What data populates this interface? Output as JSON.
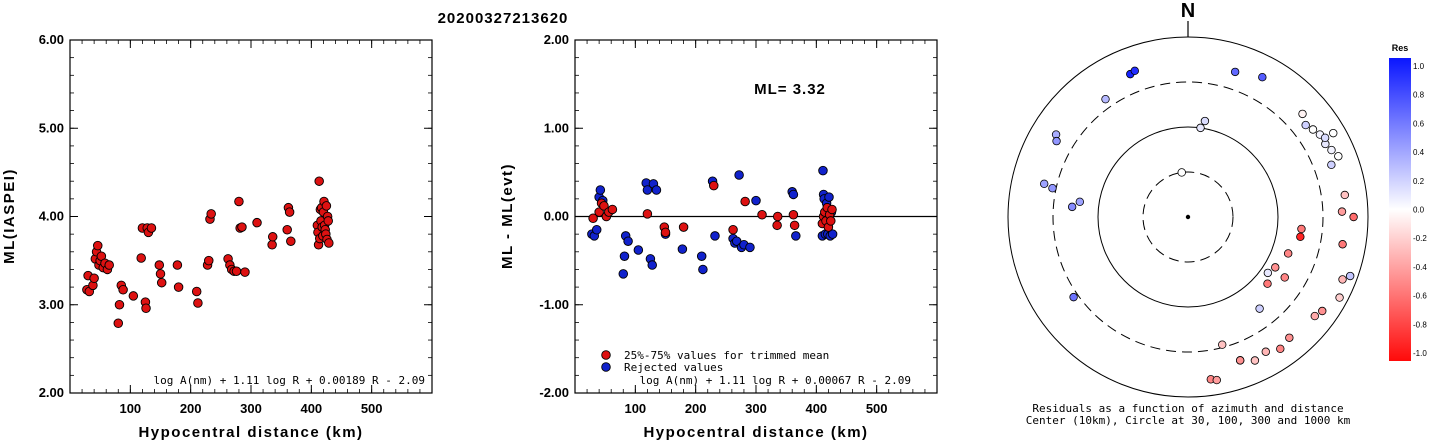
{
  "title": "20200327213620",
  "chart_data": [
    {
      "type": "scatter",
      "name": "ml-vs-distance",
      "xlabel": "Hypocentral distance (km)",
      "ylabel": "ML(IASPEI)",
      "xlim": [
        0,
        600
      ],
      "ylim": [
        2.0,
        6.0
      ],
      "xticks": [
        "100",
        "200",
        "300",
        "400",
        "500"
      ],
      "yticks": [
        "2.00",
        "3.00",
        "4.00",
        "5.00",
        "6.00"
      ],
      "formula": "log A(nm) + 1.11 log R + 0.00189 R - 2.09",
      "marker_color": "#dd1111",
      "points": [
        [
          28,
          3.17
        ],
        [
          30,
          3.33
        ],
        [
          32,
          3.15
        ],
        [
          38,
          3.22
        ],
        [
          40,
          3.3
        ],
        [
          42,
          3.52
        ],
        [
          44,
          3.6
        ],
        [
          46,
          3.67
        ],
        [
          48,
          3.45
        ],
        [
          50,
          3.5
        ],
        [
          52,
          3.55
        ],
        [
          55,
          3.42
        ],
        [
          58,
          3.47
        ],
        [
          62,
          3.4
        ],
        [
          65,
          3.45
        ],
        [
          80,
          2.79
        ],
        [
          82,
          3.0
        ],
        [
          85,
          3.22
        ],
        [
          88,
          3.17
        ],
        [
          105,
          3.1
        ],
        [
          118,
          3.53
        ],
        [
          120,
          3.87
        ],
        [
          125,
          3.03
        ],
        [
          126,
          2.96
        ],
        [
          128,
          3.87
        ],
        [
          130,
          3.82
        ],
        [
          135,
          3.87
        ],
        [
          148,
          3.45
        ],
        [
          150,
          3.35
        ],
        [
          152,
          3.25
        ],
        [
          178,
          3.45
        ],
        [
          180,
          3.2
        ],
        [
          210,
          3.15
        ],
        [
          212,
          3.02
        ],
        [
          228,
          3.45
        ],
        [
          230,
          3.5
        ],
        [
          232,
          3.97
        ],
        [
          234,
          4.03
        ],
        [
          262,
          3.52
        ],
        [
          265,
          3.45
        ],
        [
          268,
          3.4
        ],
        [
          272,
          3.38
        ],
        [
          276,
          3.38
        ],
        [
          280,
          4.17
        ],
        [
          282,
          3.87
        ],
        [
          285,
          3.88
        ],
        [
          290,
          3.37
        ],
        [
          310,
          3.93
        ],
        [
          335,
          3.68
        ],
        [
          336,
          3.77
        ],
        [
          360,
          3.85
        ],
        [
          362,
          4.1
        ],
        [
          364,
          4.05
        ],
        [
          366,
          3.72
        ],
        [
          410,
          3.9
        ],
        [
          411,
          3.82
        ],
        [
          412,
          3.68
        ],
        [
          413,
          4.4
        ],
        [
          414,
          3.75
        ],
        [
          415,
          4.08
        ],
        [
          416,
          3.95
        ],
        [
          417,
          4.1
        ],
        [
          418,
          3.88
        ],
        [
          419,
          3.78
        ],
        [
          420,
          4.05
        ],
        [
          421,
          4.17
        ],
        [
          422,
          3.9
        ],
        [
          423,
          3.85
        ],
        [
          424,
          3.8
        ],
        [
          425,
          4.12
        ],
        [
          426,
          3.74
        ],
        [
          427,
          4.0
        ],
        [
          428,
          3.95
        ],
        [
          429,
          3.7
        ]
      ]
    },
    {
      "type": "scatter",
      "name": "residual-vs-distance",
      "xlabel": "Hypocentral distance (km)",
      "ylabel": "ML - ML(evt)",
      "xlim": [
        0,
        600
      ],
      "ylim": [
        -2.0,
        2.0
      ],
      "xticks": [
        "100",
        "200",
        "300",
        "400",
        "500"
      ],
      "yticks": [
        "-2.00",
        "-1.00",
        "0.00",
        "1.00",
        "2.00"
      ],
      "ml_label": "ML= 3.32",
      "formula": "log A(nm) + 1.11 log R + 0.00067 R - 2.09",
      "legend": [
        {
          "label": "25%-75% values for trimmed mean",
          "color": "#dd1111"
        },
        {
          "label": "Rejected values",
          "color": "#1122cc"
        }
      ],
      "trimmed": [
        [
          30,
          -0.02
        ],
        [
          40,
          0.05
        ],
        [
          44,
          0.15
        ],
        [
          48,
          0.12
        ],
        [
          52,
          0.0
        ],
        [
          56,
          0.05
        ],
        [
          62,
          0.08
        ],
        [
          120,
          0.03
        ],
        [
          148,
          -0.12
        ],
        [
          150,
          -0.18
        ],
        [
          180,
          -0.12
        ],
        [
          230,
          0.35
        ],
        [
          262,
          -0.15
        ],
        [
          282,
          0.17
        ],
        [
          310,
          0.02
        ],
        [
          335,
          -0.1
        ],
        [
          336,
          0.0
        ],
        [
          362,
          0.02
        ],
        [
          364,
          -0.1
        ],
        [
          410,
          -0.08
        ],
        [
          412,
          0.0
        ],
        [
          414,
          0.05
        ],
        [
          416,
          -0.05
        ],
        [
          418,
          0.1
        ],
        [
          420,
          -0.12
        ],
        [
          422,
          0.02
        ],
        [
          424,
          -0.05
        ],
        [
          426,
          0.08
        ]
      ],
      "rejected": [
        [
          28,
          -0.2
        ],
        [
          32,
          -0.22
        ],
        [
          36,
          -0.15
        ],
        [
          40,
          0.22
        ],
        [
          42,
          0.3
        ],
        [
          46,
          0.18
        ],
        [
          80,
          -0.65
        ],
        [
          82,
          -0.45
        ],
        [
          84,
          -0.22
        ],
        [
          88,
          -0.28
        ],
        [
          105,
          -0.38
        ],
        [
          118,
          0.38
        ],
        [
          120,
          0.3
        ],
        [
          125,
          -0.48
        ],
        [
          128,
          -0.55
        ],
        [
          130,
          0.37
        ],
        [
          135,
          0.3
        ],
        [
          150,
          -0.2
        ],
        [
          178,
          -0.37
        ],
        [
          210,
          -0.45
        ],
        [
          212,
          -0.6
        ],
        [
          228,
          0.4
        ],
        [
          232,
          -0.22
        ],
        [
          262,
          -0.25
        ],
        [
          265,
          -0.3
        ],
        [
          268,
          -0.28
        ],
        [
          272,
          0.47
        ],
        [
          276,
          -0.35
        ],
        [
          280,
          -0.32
        ],
        [
          290,
          -0.35
        ],
        [
          300,
          0.18
        ],
        [
          360,
          0.28
        ],
        [
          362,
          0.25
        ],
        [
          366,
          -0.22
        ],
        [
          410,
          -0.22
        ],
        [
          411,
          0.52
        ],
        [
          412,
          0.25
        ],
        [
          413,
          0.2
        ],
        [
          415,
          -0.2
        ],
        [
          417,
          0.15
        ],
        [
          419,
          -0.2
        ],
        [
          421,
          0.22
        ],
        [
          423,
          -0.22
        ],
        [
          425,
          0.05
        ],
        [
          427,
          -0.2
        ]
      ]
    },
    {
      "type": "scatter",
      "name": "azimuth-distance-map",
      "north_label": "N",
      "caption_line1": "Residuals as a function of azimuth and distance",
      "caption_line2": "Center (10km), Circle at 30, 100, 300 and 1000 km",
      "colorbar_title": "Res",
      "colorbar_ticks": [
        "1.0",
        "0.8",
        "0.6",
        "0.4",
        "0.2",
        "0.0",
        "-0.2",
        "-0.4",
        "-0.6",
        "-0.8",
        "-1.0"
      ],
      "stations": [
        [
          -22,
          500,
          0.95
        ],
        [
          -20,
          520,
          0.9
        ],
        [
          18,
          480,
          0.65
        ],
        [
          28,
          560,
          0.7
        ],
        [
          -35,
          380,
          0.3
        ],
        [
          -58,
          520,
          0.35
        ],
        [
          -60,
          470,
          0.45
        ],
        [
          -78,
          330,
          0.45
        ],
        [
          -77,
          420,
          0.4
        ],
        [
          -85,
          190,
          0.5
        ],
        [
          -82,
          160,
          0.4
        ],
        [
          -125,
          340,
          0.6
        ],
        [
          -8,
          30,
          0.0
        ],
        [
          10,
          120,
          0.15
        ],
        [
          8,
          100,
          0.1
        ],
        [
          55,
          480,
          0.0
        ],
        [
          58,
          520,
          0.05
        ],
        [
          62,
          520,
          0.1
        ],
        [
          52,
          440,
          0.2
        ],
        [
          48,
          500,
          -0.05
        ],
        [
          65,
          560,
          0.05
        ],
        [
          68,
          620,
          0.0
        ],
        [
          60,
          560,
          0.15
        ],
        [
          70,
          480,
          0.2
        ],
        [
          82,
          560,
          -0.25
        ],
        [
          88,
          500,
          -0.4
        ],
        [
          100,
          540,
          -0.55
        ],
        [
          112,
          700,
          -0.3
        ],
        [
          118,
          800,
          -0.2
        ],
        [
          125,
          650,
          -0.45
        ],
        [
          128,
          600,
          -0.35
        ],
        [
          140,
          550,
          -0.45
        ],
        [
          145,
          600,
          -0.5
        ],
        [
          150,
          520,
          -0.3
        ],
        [
          155,
          560,
          -0.25
        ],
        [
          160,
          480,
          -0.35
        ],
        [
          100,
          180,
          -0.9
        ],
        [
          96,
          180,
          -0.55
        ],
        [
          110,
          150,
          -0.5
        ],
        [
          120,
          130,
          -0.45
        ],
        [
          122,
          180,
          -0.5
        ],
        [
          130,
          140,
          -0.55
        ],
        [
          142,
          190,
          0.2
        ],
        [
          125,
          120,
          0.1
        ],
        [
          165,
          280,
          -0.25
        ],
        [
          160,
          480,
          -0.45
        ],
        [
          172,
          650,
          -0.5
        ],
        [
          170,
          680,
          -0.4
        ],
        [
          110,
          820,
          0.25
        ],
        [
          60,
          720,
          0.0
        ],
        [
          90,
          680,
          -0.6
        ]
      ]
    }
  ]
}
